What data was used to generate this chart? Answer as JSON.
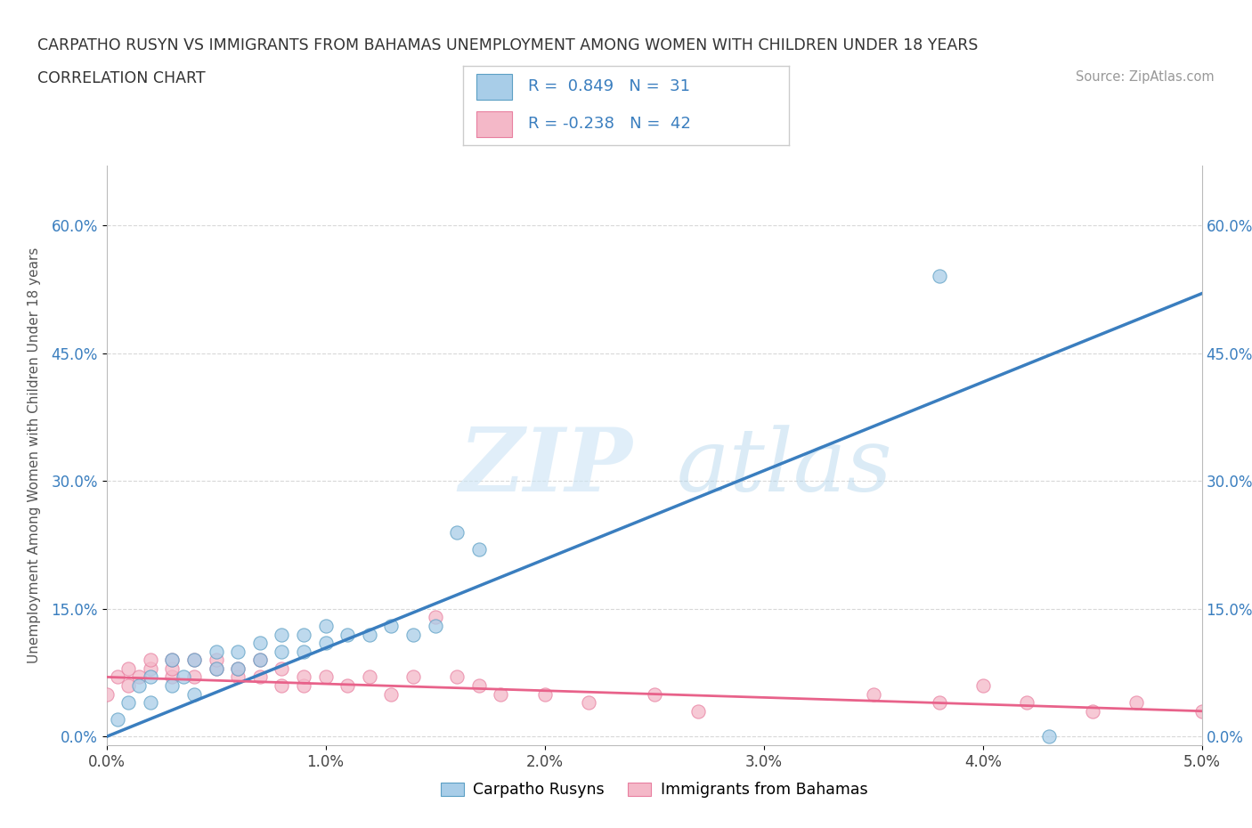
{
  "title_line1": "CARPATHO RUSYN VS IMMIGRANTS FROM BAHAMAS UNEMPLOYMENT AMONG WOMEN WITH CHILDREN UNDER 18 YEARS",
  "title_line2": "CORRELATION CHART",
  "source_text": "Source: ZipAtlas.com",
  "ylabel": "Unemployment Among Women with Children Under 18 years",
  "xlim": [
    0.0,
    0.05
  ],
  "ylim": [
    -0.01,
    0.67
  ],
  "xtick_vals": [
    0.0,
    0.01,
    0.02,
    0.03,
    0.04,
    0.05
  ],
  "xtick_labels": [
    "0.0%",
    "1.0%",
    "2.0%",
    "3.0%",
    "4.0%",
    "5.0%"
  ],
  "ytick_vals": [
    0.0,
    0.15,
    0.3,
    0.45,
    0.6
  ],
  "ytick_labels": [
    "0.0%",
    "15.0%",
    "30.0%",
    "45.0%",
    "60.0%"
  ],
  "blue_color": "#a8cde8",
  "pink_color": "#f4b8c8",
  "blue_edge_color": "#5b9fc4",
  "pink_edge_color": "#e87fa0",
  "blue_line_color": "#3a7ebf",
  "pink_line_color": "#e8628a",
  "blue_r": 0.849,
  "blue_n": 31,
  "pink_r": -0.238,
  "pink_n": 42,
  "legend_label_blue": "Carpatho Rusyns",
  "legend_label_pink": "Immigrants from Bahamas",
  "blue_scatter_x": [
    0.0005,
    0.001,
    0.0015,
    0.002,
    0.002,
    0.003,
    0.003,
    0.0035,
    0.004,
    0.004,
    0.005,
    0.005,
    0.006,
    0.006,
    0.007,
    0.007,
    0.008,
    0.008,
    0.009,
    0.009,
    0.01,
    0.01,
    0.011,
    0.012,
    0.013,
    0.014,
    0.015,
    0.016,
    0.017,
    0.038,
    0.043
  ],
  "blue_scatter_y": [
    0.02,
    0.04,
    0.06,
    0.04,
    0.07,
    0.06,
    0.09,
    0.07,
    0.05,
    0.09,
    0.08,
    0.1,
    0.08,
    0.1,
    0.09,
    0.11,
    0.1,
    0.12,
    0.1,
    0.12,
    0.11,
    0.13,
    0.12,
    0.12,
    0.13,
    0.12,
    0.13,
    0.24,
    0.22,
    0.54,
    0.0
  ],
  "pink_scatter_x": [
    0.0,
    0.0005,
    0.001,
    0.001,
    0.0015,
    0.002,
    0.002,
    0.003,
    0.003,
    0.003,
    0.004,
    0.004,
    0.005,
    0.005,
    0.006,
    0.006,
    0.007,
    0.007,
    0.008,
    0.008,
    0.009,
    0.009,
    0.01,
    0.011,
    0.012,
    0.013,
    0.014,
    0.015,
    0.016,
    0.017,
    0.018,
    0.02,
    0.022,
    0.025,
    0.027,
    0.035,
    0.038,
    0.04,
    0.042,
    0.045,
    0.047,
    0.05
  ],
  "pink_scatter_y": [
    0.05,
    0.07,
    0.06,
    0.08,
    0.07,
    0.08,
    0.09,
    0.07,
    0.08,
    0.09,
    0.07,
    0.09,
    0.08,
    0.09,
    0.07,
    0.08,
    0.07,
    0.09,
    0.06,
    0.08,
    0.06,
    0.07,
    0.07,
    0.06,
    0.07,
    0.05,
    0.07,
    0.14,
    0.07,
    0.06,
    0.05,
    0.05,
    0.04,
    0.05,
    0.03,
    0.05,
    0.04,
    0.06,
    0.04,
    0.03,
    0.04,
    0.03
  ],
  "grid_color": "#d8d8d8",
  "background_color": "#ffffff",
  "fig_background": "#ffffff",
  "blue_line_x0": 0.0,
  "blue_line_y0": 0.0,
  "blue_line_x1": 0.05,
  "blue_line_y1": 0.52,
  "pink_line_x0": 0.0,
  "pink_line_y0": 0.07,
  "pink_line_x1": 0.05,
  "pink_line_y1": 0.03
}
